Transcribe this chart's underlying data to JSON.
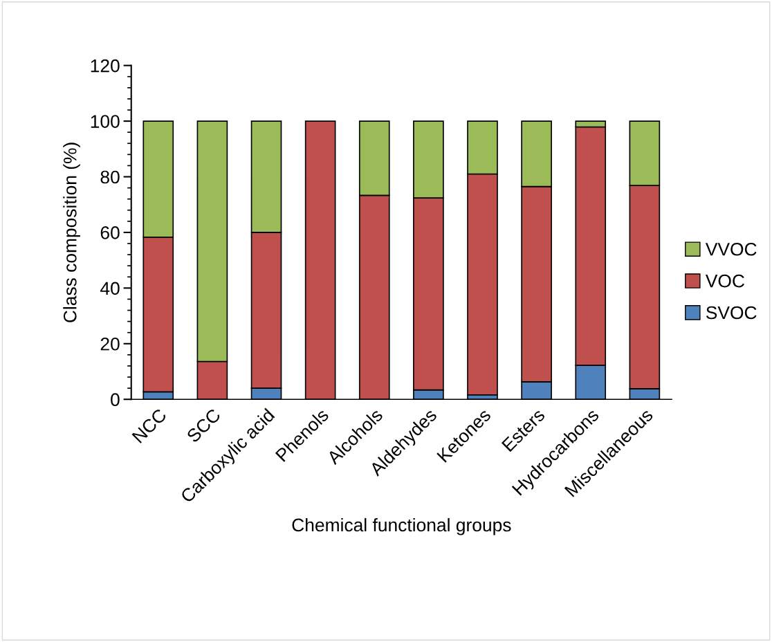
{
  "chart_data": {
    "type": "bar",
    "stacked": true,
    "xlabel": "Chemical functional groups",
    "ylabel": "Class composition (%)",
    "categories": [
      "NCC",
      "SCC",
      "Carboxylic acid",
      "Phenols",
      "Alcohols",
      "Aldehydes",
      "Ketones",
      "Esters",
      "Hydrocarbons",
      "Miscellaneous"
    ],
    "series": [
      {
        "name": "SVOC",
        "color": "#4f81bd",
        "values": [
          2.7,
          0,
          4.0,
          0,
          0,
          3.4,
          1.6,
          6.3,
          12.2,
          3.8
        ]
      },
      {
        "name": "VOC",
        "color": "#c0504d",
        "values": [
          55.6,
          13.6,
          56.0,
          100,
          73.3,
          69.0,
          79.4,
          70.2,
          85.7,
          73.1
        ]
      },
      {
        "name": "VVOC",
        "color": "#9bbb59",
        "values": [
          41.7,
          86.4,
          40.0,
          0,
          26.7,
          27.6,
          19.0,
          23.5,
          2.1,
          23.1
        ]
      }
    ],
    "ylim": [
      0,
      120
    ],
    "yticks": [
      0,
      20,
      40,
      60,
      80,
      100,
      120
    ],
    "grid": false,
    "legend": "right"
  }
}
